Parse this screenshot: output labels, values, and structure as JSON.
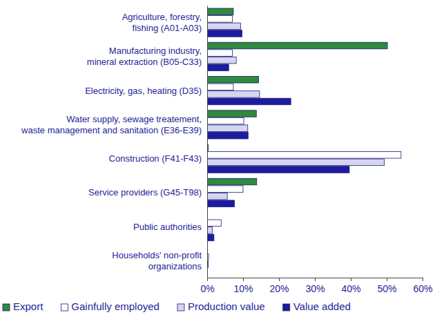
{
  "chart_data": {
    "type": "bar",
    "orientation": "horizontal",
    "categories": [
      "Agriculture, forestry,\nfishing (A01-A03)",
      "Manufacturing industry,\nmineral extraction (B05-C33)",
      "Electricity, gas, heating (D35)",
      "Water supply, sewage treatement,\nwaste management and sanitation (E36-E39)",
      "Construction (F41-F43)",
      "Service providers (G45-T98)",
      "Public authorities",
      "Households' non-profit\norganizations"
    ],
    "series": [
      {
        "name": "Export",
        "color": "#2f8a3c",
        "values": [
          7.3,
          50.2,
          14.3,
          13.7,
          0.3,
          13.8,
          0.1,
          0.05
        ]
      },
      {
        "name": "Gainfully employed",
        "color": "#ffffff",
        "values": [
          7.0,
          7.0,
          7.3,
          10.2,
          54.0,
          10.0,
          3.9,
          0.4
        ]
      },
      {
        "name": "Production value",
        "color": "#d6d6f2",
        "values": [
          9.3,
          8.1,
          14.6,
          11.3,
          49.3,
          5.6,
          1.4,
          0.3
        ]
      },
      {
        "name": "Value added",
        "color": "#1c1ca0",
        "values": [
          9.7,
          6.0,
          23.3,
          11.4,
          39.6,
          7.6,
          1.9,
          0.1
        ]
      }
    ],
    "xlim": [
      0,
      60
    ],
    "xticks": [
      {
        "value": 0,
        "label": "0%"
      },
      {
        "value": 10,
        "label": "10%"
      },
      {
        "value": 20,
        "label": "20%"
      },
      {
        "value": 30,
        "label": "30%"
      },
      {
        "value": 40,
        "label": "40%"
      },
      {
        "value": 50,
        "label": "50%"
      },
      {
        "value": 60,
        "label": "60%"
      }
    ],
    "grid": false,
    "legend": "bottom"
  }
}
